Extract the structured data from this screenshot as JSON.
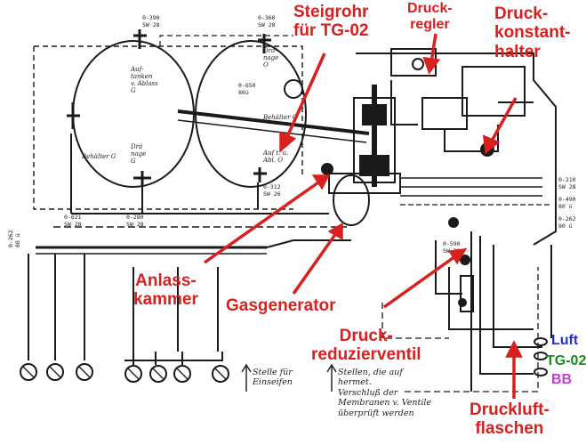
{
  "labels": {
    "steigrohr": [
      "Steigrohr",
      "für TG-02"
    ],
    "druckregler": [
      "Druck-",
      "regler"
    ],
    "druckkonstanthalter": [
      "Druck-",
      "konstant-",
      "halter"
    ],
    "anlasskammer": [
      "Anlass-",
      "kammer"
    ],
    "gasgenerator": "Gasgenerator",
    "druckreduzierventil": [
      "Druck-",
      "reduzierventil"
    ],
    "druckluftflaschen": [
      "Druckluft-",
      "flaschen"
    ]
  },
  "legend": {
    "luft": "Luft",
    "tg02": "TG-02",
    "bb": "BB"
  },
  "colors": {
    "annotation": "#d8201e",
    "luft": "#2230d0",
    "tg02": "#1a8a1a",
    "bb": "#c040d0",
    "line": "#1a1a1a"
  },
  "drawing_text": {
    "behaelter_g": "Behälter G",
    "behaelter_o": "Behälter O",
    "auftanken": [
      "Auf-",
      "tanken",
      "v. Ablass",
      "G"
    ],
    "draenage_g": [
      "Drä",
      "nage",
      "G"
    ],
    "draenage_o": [
      "Drä-",
      "nage",
      "O"
    ],
    "auftank_o": [
      "Auf t. u.",
      "Abl. O"
    ],
    "v0650": [
      "0-650",
      "80ü"
    ],
    "v0390": [
      "0-390",
      "SW 28"
    ],
    "v0360": [
      "0-360",
      "SW 28"
    ],
    "v0621": [
      "0-621",
      "SW 28"
    ],
    "v0280": [
      "0-280",
      "SW 28"
    ],
    "v0312": [
      "0-312",
      "SW 26"
    ],
    "v0210": [
      "0-210",
      "SW 28"
    ],
    "v0490": [
      "0-490",
      "80 ü"
    ],
    "v0262r": [
      "0-262",
      "80 ü"
    ],
    "v0262l": [
      "0-262",
      "80 ü"
    ],
    "v0590": [
      "0-590",
      "SW 28"
    ]
  },
  "notes": {
    "stelle_einseifen": [
      "Stelle für",
      "Einseifen"
    ],
    "stellen_hermet": [
      "Stellen, die auf",
      "hermet.",
      "Verschluß der",
      "Membranen v. Ventile",
      "überprüft werden"
    ]
  }
}
